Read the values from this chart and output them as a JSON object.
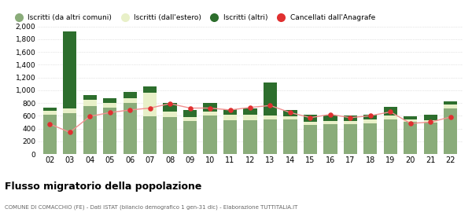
{
  "years": [
    "02",
    "03",
    "04",
    "05",
    "06",
    "07",
    "08",
    "09",
    "10",
    "11",
    "12",
    "13",
    "14",
    "15",
    "16",
    "17",
    "18",
    "19",
    "20",
    "21",
    "22"
  ],
  "iscritti_altri_comuni": [
    620,
    640,
    750,
    730,
    800,
    590,
    580,
    520,
    600,
    530,
    530,
    540,
    540,
    460,
    470,
    470,
    480,
    540,
    500,
    490,
    720
  ],
  "iscritti_estero": [
    60,
    80,
    100,
    70,
    80,
    370,
    80,
    60,
    60,
    80,
    80,
    60,
    50,
    50,
    50,
    50,
    60,
    60,
    40,
    40,
    60
  ],
  "iscritti_altri": [
    50,
    1200,
    70,
    70,
    90,
    100,
    140,
    110,
    140,
    90,
    110,
    520,
    100,
    110,
    80,
    80,
    80,
    140,
    50,
    80,
    50
  ],
  "cancellati": [
    470,
    340,
    590,
    650,
    690,
    720,
    790,
    720,
    720,
    690,
    730,
    760,
    650,
    570,
    620,
    570,
    600,
    660,
    480,
    500,
    580
  ],
  "color_altri_comuni": "#8aac7a",
  "color_estero": "#e8f0c8",
  "color_altri": "#2d6e2d",
  "color_cancellati": "#e03030",
  "color_cancellati_line": "#f09090",
  "title": "Flusso migratorio della popolazione",
  "subtitle": "COMUNE DI COMACCHIO (FE) - Dati ISTAT (bilancio demografico 1 gen-31 dic) - Elaborazione TUTTITALIA.IT",
  "legend_labels": [
    "Iscritti (da altri comuni)",
    "Iscritti (dall'estero)",
    "Iscritti (altri)",
    "Cancellati dall'Anagrafe"
  ],
  "ylim": [
    0,
    2000
  ],
  "yticks": [
    0,
    200,
    400,
    600,
    800,
    1000,
    1200,
    1400,
    1600,
    1800,
    2000
  ],
  "background_color": "#ffffff",
  "grid_color": "#cccccc"
}
